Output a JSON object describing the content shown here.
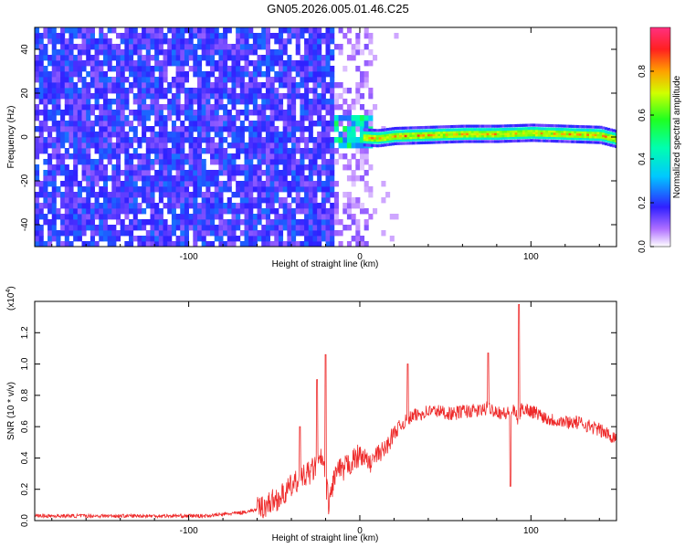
{
  "figure_title": "GN05.2026.005.01.46.C25",
  "colors": {
    "spectrum_purple": "#7a10ee",
    "snr_line": "#ee2a2a",
    "axis": "#000000"
  },
  "chart_data": [
    {
      "id": "spectrogram",
      "type": "heatmap",
      "title": "GN05.2026.005.01.46.C25",
      "xlabel": "Height of straight line (km)",
      "ylabel": "Frequency (Hz)",
      "xlim": [
        -190,
        150
      ],
      "ylim": [
        -50,
        50
      ],
      "xticks": [
        -100,
        0,
        100
      ],
      "yticks": [
        -40,
        -20,
        0,
        20,
        40
      ],
      "xtick_labels": [
        "-100",
        "0",
        "100"
      ],
      "ytick_labels": [
        "-40",
        "-20",
        "0",
        "20",
        "40"
      ],
      "grid": false,
      "description_regions": [
        {
          "x_range": [
            -190,
            -15
          ],
          "freq_range": [
            -50,
            50
          ],
          "amplitude_range": [
            0.1,
            0.25
          ]
        },
        {
          "x_range": [
            -15,
            8
          ],
          "freq_range": [
            -50,
            50
          ],
          "amplitude_range": [
            0.03,
            0.12
          ]
        },
        {
          "x_range": [
            -25,
            5
          ],
          "freq_range": [
            -5,
            8
          ],
          "amplitude_range": [
            0.3,
            0.55
          ]
        },
        {
          "x_range": [
            5,
            150
          ],
          "freq_range": [
            -2,
            3
          ],
          "amplitude_range": [
            0.5,
            0.95
          ]
        }
      ],
      "ridge_line": {
        "x": [
          0,
          10,
          20,
          40,
          60,
          80,
          100,
          120,
          140,
          150
        ],
        "frequency": [
          0,
          -0.5,
          0.5,
          1,
          1.5,
          1.5,
          2,
          1.5,
          1,
          -1
        ]
      },
      "colorbar": {
        "label": "Normalized spectral amplitude",
        "range": [
          0,
          1
        ],
        "ticks": [
          0.0,
          0.2,
          0.4,
          0.6,
          0.8
        ],
        "tick_labels": [
          "0.0",
          "0.2",
          "0.4",
          "0.6",
          "0.8"
        ]
      }
    },
    {
      "id": "snr",
      "type": "line",
      "xlabel": "Height of straight line (km)",
      "ylabel": "SNR (10 * v/v)",
      "exponent_label": "(x10",
      "exponent_power": "4",
      "exponent_close": ")",
      "xlim": [
        -190,
        150
      ],
      "ylim": [
        0,
        1.4
      ],
      "xticks": [
        -100,
        0,
        100
      ],
      "yticks": [
        0.0,
        0.2,
        0.4,
        0.6,
        0.8,
        1.0,
        1.2
      ],
      "xtick_labels": [
        "-100",
        "0",
        "100"
      ],
      "ytick_labels": [
        "0.0",
        "0.2",
        "0.4",
        "0.6",
        "0.8",
        "1.0",
        "1.2"
      ],
      "grid": false,
      "series": [
        {
          "name": "SNR",
          "x": [
            -190,
            -170,
            -150,
            -130,
            -110,
            -90,
            -80,
            -70,
            -60,
            -55,
            -50,
            -45,
            -40,
            -35,
            -30,
            -25,
            -22,
            -20,
            -18,
            -15,
            -12,
            -10,
            -8,
            -5,
            -2,
            0,
            3,
            6,
            10,
            15,
            20,
            25,
            30,
            35,
            40,
            45,
            50,
            55,
            60,
            65,
            70,
            75,
            80,
            85,
            90,
            92,
            95,
            100,
            105,
            110,
            115,
            120,
            125,
            130,
            135,
            140,
            145,
            150
          ],
          "values": [
            0.03,
            0.03,
            0.03,
            0.03,
            0.03,
            0.03,
            0.04,
            0.05,
            0.07,
            0.1,
            0.13,
            0.16,
            0.22,
            0.26,
            0.3,
            0.35,
            0.4,
            0.25,
            0.1,
            0.28,
            0.33,
            0.3,
            0.35,
            0.37,
            0.4,
            0.42,
            0.4,
            0.36,
            0.42,
            0.46,
            0.56,
            0.62,
            0.66,
            0.68,
            0.7,
            0.7,
            0.69,
            0.68,
            0.7,
            0.7,
            0.7,
            0.72,
            0.7,
            0.68,
            0.7,
            0.65,
            0.72,
            0.7,
            0.68,
            0.65,
            0.64,
            0.63,
            0.63,
            0.62,
            0.6,
            0.58,
            0.55,
            0.53
          ]
        }
      ],
      "spikes": [
        {
          "x": -35,
          "value": 0.6
        },
        {
          "x": -25,
          "value": 0.9
        },
        {
          "x": -20,
          "value": 1.06
        },
        {
          "x": 28,
          "value": 1.0
        },
        {
          "x": 75,
          "value": 1.07
        },
        {
          "x": 93,
          "value": 1.38
        },
        {
          "x": 88,
          "value": 0.22
        }
      ]
    }
  ]
}
